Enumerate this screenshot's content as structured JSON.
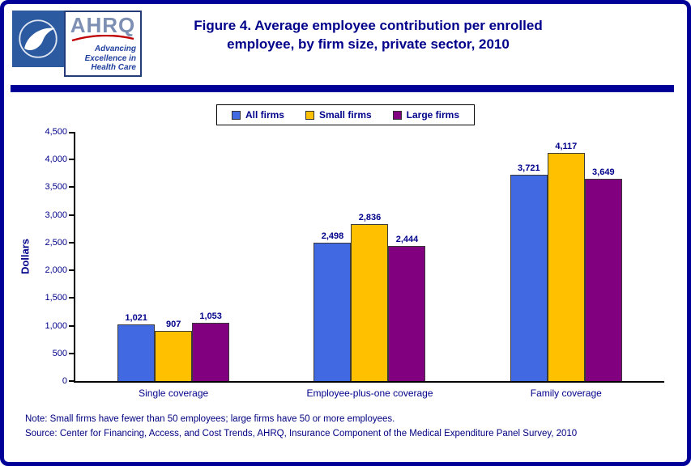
{
  "logo": {
    "wordmark": "AHRQ",
    "tagline": "Advancing\nExcellence in\nHealth Care"
  },
  "header": {
    "title": "Figure 4. Average employee contribution per enrolled employee, by firm size, private sector, 2010"
  },
  "chart_data": {
    "type": "bar",
    "title": "Figure 4. Average employee contribution per enrolled employee, by firm size, private sector, 2010",
    "categories": [
      "Single coverage",
      "Employee-plus-one coverage",
      "Family coverage"
    ],
    "series": [
      {
        "name": "All firms",
        "color": "#4169E1",
        "values": [
          1021,
          2498,
          3721
        ]
      },
      {
        "name": "Small firms",
        "color": "#FFC000",
        "values": [
          907,
          2836,
          4117
        ]
      },
      {
        "name": "Large firms",
        "color": "#800080",
        "values": [
          1053,
          2444,
          3649
        ]
      }
    ],
    "xlabel": "",
    "ylabel": "Dollars",
    "ylim": [
      0,
      4500
    ],
    "ytick_step": 500,
    "legend_position": "top",
    "grid": false,
    "value_labels": true
  },
  "footer": {
    "note": "Note: Small firms have fewer than 50 employees; large firms have 50 or more employees.",
    "source": "Source: Center for Financing, Access, and Cost Trends, AHRQ, Insurance Component of the Medical Expenditure Panel Survey, 2010"
  },
  "colors": {
    "frame_navy": "#000099",
    "title_text": "#00008B",
    "footer_text": "#000080"
  }
}
